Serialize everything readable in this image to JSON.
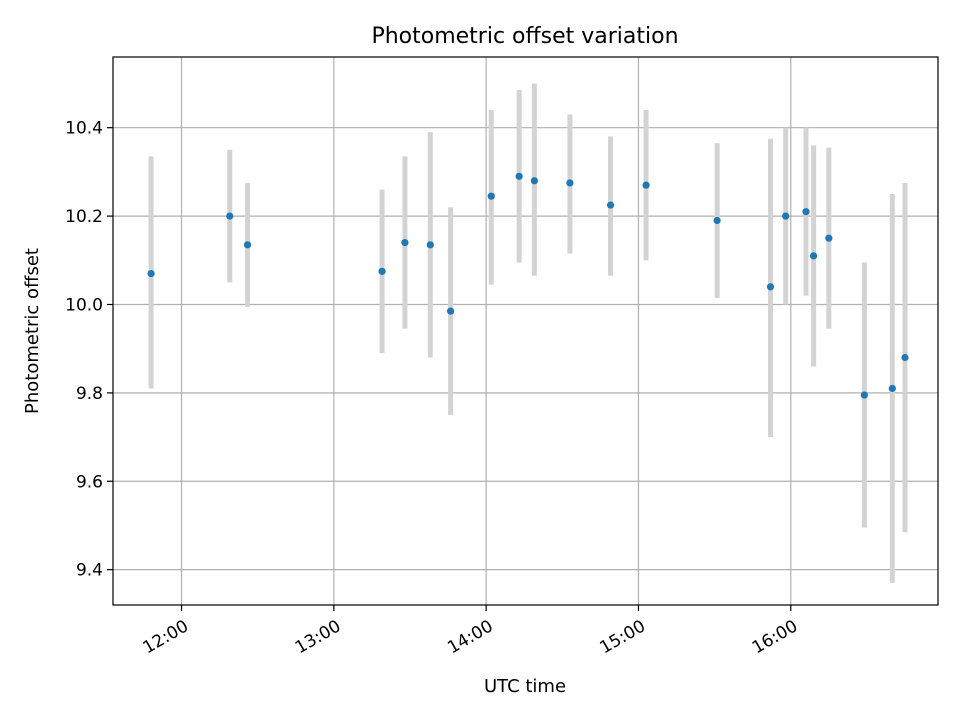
{
  "chart_data": {
    "type": "scatter",
    "title": "Photometric offset variation",
    "xlabel": "UTC time",
    "ylabel": "Photometric offset",
    "xlim": [
      "11:33",
      "16:58"
    ],
    "ylim": [
      9.32,
      10.56
    ],
    "x_ticks": [
      "12:00",
      "13:00",
      "14:00",
      "15:00",
      "16:00"
    ],
    "y_ticks": [
      "9.4",
      "9.6",
      "9.8",
      "10.0",
      "10.2",
      "10.4"
    ],
    "grid": true,
    "colors": {
      "point": "#1f77b4",
      "errorbar": "#d3d3d3",
      "grid": "#b0b0b0"
    },
    "points": [
      {
        "time": "11:48",
        "y": 10.07,
        "low": 9.81,
        "high": 10.335
      },
      {
        "time": "12:19",
        "y": 10.2,
        "low": 10.05,
        "high": 10.35
      },
      {
        "time": "12:26",
        "y": 10.135,
        "low": 9.995,
        "high": 10.275
      },
      {
        "time": "13:19",
        "y": 10.075,
        "low": 9.89,
        "high": 10.26
      },
      {
        "time": "13:28",
        "y": 10.14,
        "low": 9.945,
        "high": 10.335
      },
      {
        "time": "13:38",
        "y": 10.135,
        "low": 9.88,
        "high": 10.39
      },
      {
        "time": "13:46",
        "y": 9.985,
        "low": 9.75,
        "high": 10.22
      },
      {
        "time": "14:02",
        "y": 10.245,
        "low": 10.045,
        "high": 10.44
      },
      {
        "time": "14:13",
        "y": 10.29,
        "low": 10.095,
        "high": 10.485
      },
      {
        "time": "14:19",
        "y": 10.28,
        "low": 10.065,
        "high": 10.5
      },
      {
        "time": "14:33",
        "y": 10.275,
        "low": 10.115,
        "high": 10.43
      },
      {
        "time": "14:49",
        "y": 10.225,
        "low": 10.065,
        "high": 10.38
      },
      {
        "time": "15:03",
        "y": 10.27,
        "low": 10.1,
        "high": 10.44
      },
      {
        "time": "15:31",
        "y": 10.19,
        "low": 10.015,
        "high": 10.365
      },
      {
        "time": "15:52",
        "y": 10.04,
        "low": 9.7,
        "high": 10.375
      },
      {
        "time": "15:58",
        "y": 10.2,
        "low": 10.0,
        "high": 10.4
      },
      {
        "time": "16:06",
        "y": 10.21,
        "low": 10.02,
        "high": 10.4
      },
      {
        "time": "16:09",
        "y": 10.11,
        "low": 9.86,
        "high": 10.36
      },
      {
        "time": "16:15",
        "y": 10.15,
        "low": 9.945,
        "high": 10.355
      },
      {
        "time": "16:29",
        "y": 9.795,
        "low": 9.495,
        "high": 10.095
      },
      {
        "time": "16:40",
        "y": 9.81,
        "low": 9.37,
        "high": 10.25
      },
      {
        "time": "16:45",
        "y": 9.88,
        "low": 9.485,
        "high": 10.275
      }
    ]
  }
}
